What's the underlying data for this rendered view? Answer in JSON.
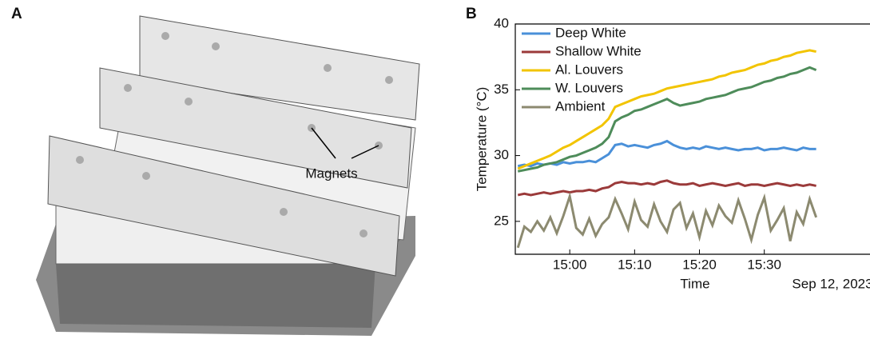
{
  "panels": [
    {
      "label": "A",
      "annotation": "Magnets"
    }
  ],
  "chart_data": {
    "type": "line",
    "panel_label": "B",
    "x_label": "Time",
    "date_label": "Sep 12, 2023",
    "y_label": "Temperature (°C)",
    "x": [
      892,
      893,
      894,
      895,
      896,
      897,
      898,
      899,
      900,
      901,
      902,
      903,
      904,
      905,
      906,
      907,
      908,
      909,
      910,
      911,
      912,
      913,
      914,
      915,
      916,
      917,
      918,
      919,
      920,
      921,
      922,
      923,
      924,
      925,
      926,
      927,
      928,
      929,
      930,
      931,
      932,
      933,
      934,
      935,
      936,
      937,
      938
    ],
    "xlim": [
      891.6,
      946.3
    ],
    "xticks": [
      {
        "value": 900,
        "label": "15:00"
      },
      {
        "value": 910,
        "label": "15:10"
      },
      {
        "value": 920,
        "label": "15:20"
      },
      {
        "value": 930,
        "label": "15:30"
      }
    ],
    "ylim": [
      22.5,
      40
    ],
    "yticks": [
      25,
      30,
      35,
      40
    ],
    "legend": "upper left",
    "series": [
      {
        "name": "Deep White",
        "color": "#4a90d9",
        "values": [
          29.2,
          29.3,
          29.2,
          29.4,
          29.3,
          29.4,
          29.3,
          29.5,
          29.4,
          29.5,
          29.5,
          29.6,
          29.5,
          29.8,
          30.1,
          30.8,
          30.9,
          30.7,
          30.8,
          30.7,
          30.6,
          30.8,
          30.9,
          31.1,
          30.8,
          30.6,
          30.5,
          30.6,
          30.5,
          30.7,
          30.6,
          30.5,
          30.6,
          30.5,
          30.4,
          30.5,
          30.5,
          30.6,
          30.4,
          30.5,
          30.5,
          30.6,
          30.5,
          30.4,
          30.6,
          30.5,
          30.5
        ]
      },
      {
        "name": "Shallow White",
        "color": "#9b3a3a",
        "values": [
          27.0,
          27.1,
          27.0,
          27.1,
          27.2,
          27.1,
          27.2,
          27.3,
          27.2,
          27.3,
          27.3,
          27.4,
          27.3,
          27.5,
          27.6,
          27.9,
          28.0,
          27.9,
          27.9,
          27.8,
          27.9,
          27.8,
          28.0,
          28.1,
          27.9,
          27.8,
          27.8,
          27.9,
          27.7,
          27.8,
          27.9,
          27.8,
          27.7,
          27.8,
          27.9,
          27.7,
          27.8,
          27.8,
          27.7,
          27.8,
          27.9,
          27.8,
          27.7,
          27.8,
          27.7,
          27.8,
          27.7
        ]
      },
      {
        "name": "Al. Louvers",
        "color": "#f2c400",
        "values": [
          29.0,
          29.2,
          29.4,
          29.6,
          29.8,
          30.0,
          30.3,
          30.6,
          30.8,
          31.1,
          31.4,
          31.7,
          32.0,
          32.3,
          32.8,
          33.7,
          33.9,
          34.1,
          34.3,
          34.5,
          34.6,
          34.7,
          34.9,
          35.1,
          35.2,
          35.3,
          35.4,
          35.5,
          35.6,
          35.7,
          35.8,
          36.0,
          36.1,
          36.3,
          36.4,
          36.5,
          36.7,
          36.9,
          37.0,
          37.2,
          37.3,
          37.5,
          37.6,
          37.8,
          37.9,
          38.0,
          37.9
        ]
      },
      {
        "name": "W. Louvers",
        "color": "#4e8c5a",
        "values": [
          28.8,
          28.9,
          29.0,
          29.1,
          29.3,
          29.4,
          29.5,
          29.7,
          29.9,
          30.0,
          30.2,
          30.4,
          30.6,
          30.9,
          31.4,
          32.6,
          32.9,
          33.1,
          33.4,
          33.5,
          33.7,
          33.9,
          34.1,
          34.3,
          34.0,
          33.8,
          33.9,
          34.0,
          34.1,
          34.3,
          34.4,
          34.5,
          34.6,
          34.8,
          35.0,
          35.1,
          35.2,
          35.4,
          35.6,
          35.7,
          35.9,
          36.0,
          36.2,
          36.3,
          36.5,
          36.7,
          36.5
        ]
      },
      {
        "name": "Ambient",
        "color": "#8c8a70",
        "values": [
          23.0,
          24.6,
          24.2,
          25.0,
          24.3,
          25.3,
          24.1,
          25.4,
          26.9,
          24.5,
          24.0,
          25.2,
          23.9,
          24.8,
          25.3,
          26.7,
          25.6,
          24.4,
          26.5,
          25.1,
          24.6,
          26.3,
          25.0,
          24.2,
          25.9,
          26.4,
          24.5,
          25.6,
          23.8,
          25.8,
          24.7,
          26.2,
          25.4,
          24.9,
          26.6,
          25.2,
          23.6,
          25.5,
          26.8,
          24.3,
          25.1,
          26.0,
          23.5,
          25.7,
          24.8,
          26.7,
          25.3
        ]
      }
    ]
  }
}
